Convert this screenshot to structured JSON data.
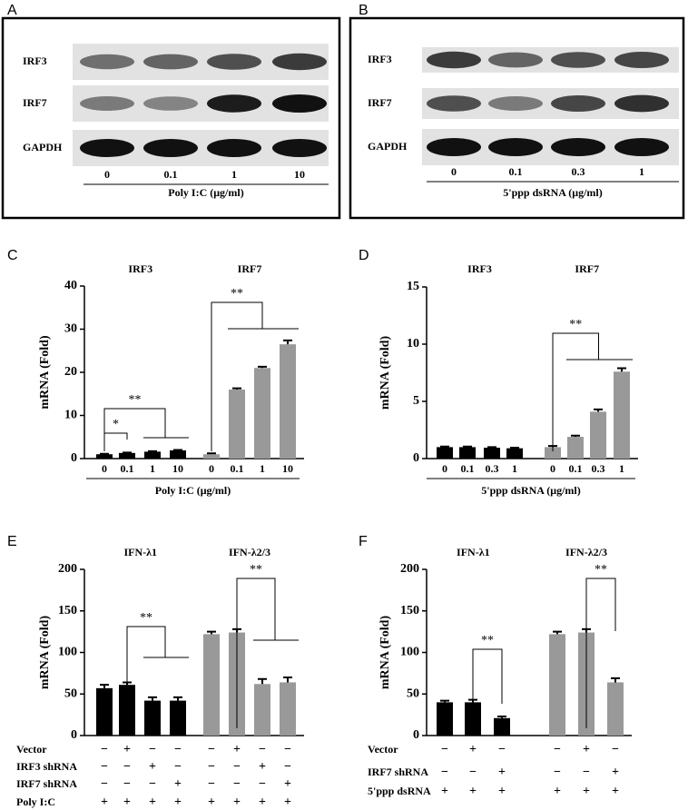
{
  "blots": [
    {
      "panel": "A",
      "rows": [
        "IRF3",
        "IRF7",
        "GAPDH"
      ],
      "lanes": [
        "0",
        "0.1",
        "1",
        "10"
      ],
      "xlabel": "Poly I:C (μg/ml)"
    },
    {
      "panel": "B",
      "rows": [
        "IRF3",
        "IRF7",
        "GAPDH"
      ],
      "lanes": [
        "0",
        "0.1",
        "0.3",
        "1"
      ],
      "xlabel": "5'ppp dsRNA (μg/ml)"
    }
  ],
  "chart_data": [
    {
      "type": "bar",
      "panel": "C",
      "ylabel": "mRNA (Fold)",
      "xlabel": "Poly I:C (μg/ml)",
      "categories": [
        "0",
        "0.1",
        "1",
        "10",
        "0",
        "0.1",
        "1",
        "10"
      ],
      "series": [
        {
          "name": "IRF3",
          "color": "#000000",
          "values": [
            1,
            1.3,
            1.6,
            1.9,
            null,
            null,
            null,
            null
          ],
          "errors": [
            0.1,
            0.1,
            0.1,
            0.1,
            null,
            null,
            null,
            null
          ]
        },
        {
          "name": "IRF7",
          "color": "#999999",
          "values": [
            null,
            null,
            null,
            null,
            1,
            16,
            21,
            26.5
          ],
          "errors": [
            null,
            null,
            null,
            null,
            0.2,
            0.3,
            0.3,
            0.9
          ]
        }
      ],
      "ylim": [
        0,
        40
      ],
      "yticks": [
        0,
        10,
        20,
        30,
        40
      ],
      "annotations": [
        "*",
        "**",
        "**"
      ]
    },
    {
      "type": "bar",
      "panel": "D",
      "ylabel": "mRNA (Fold)",
      "xlabel": "5'ppp dsRNA (μg/ml)",
      "categories": [
        "0",
        "0.1",
        "0.3",
        "1",
        "0",
        "0.1",
        "0.3",
        "1"
      ],
      "series": [
        {
          "name": "IRF3",
          "color": "#000000",
          "values": [
            1,
            1,
            0.95,
            0.9,
            null,
            null,
            null,
            null
          ],
          "errors": [
            0.05,
            0.05,
            0.05,
            0.05,
            null,
            null,
            null,
            null
          ]
        },
        {
          "name": "IRF7",
          "color": "#999999",
          "values": [
            null,
            null,
            null,
            null,
            1,
            1.9,
            4.1,
            7.6
          ],
          "errors": [
            null,
            null,
            null,
            null,
            0.1,
            0.1,
            0.2,
            0.3
          ]
        }
      ],
      "ylim": [
        0,
        15
      ],
      "yticks": [
        0,
        5,
        10,
        15
      ],
      "annotations": [
        "**"
      ]
    },
    {
      "type": "bar",
      "panel": "E",
      "ylabel": "mRNA (Fold)",
      "categories": [
        null,
        null,
        null,
        null,
        null,
        null,
        null,
        null
      ],
      "series": [
        {
          "name": "IFN-λ1",
          "color": "#000000",
          "values": [
            57,
            61,
            42,
            42,
            null,
            null,
            null,
            null
          ],
          "errors": [
            4,
            3,
            4,
            4,
            null,
            null,
            null,
            null
          ]
        },
        {
          "name": "IFN-λ2/3",
          "color": "#999999",
          "values": [
            null,
            null,
            null,
            null,
            122,
            124,
            62,
            64
          ],
          "errors": [
            null,
            null,
            null,
            null,
            3,
            4,
            6,
            6
          ]
        }
      ],
      "ylim": [
        0,
        200
      ],
      "yticks": [
        0,
        50,
        100,
        150,
        200
      ],
      "annotations": [
        "**",
        "**"
      ],
      "conditions": [
        {
          "label": "Vector",
          "signs": [
            "−",
            "+",
            "−",
            "−",
            "−",
            "+",
            "−",
            "−"
          ]
        },
        {
          "label": "IRF3 shRNA",
          "signs": [
            "−",
            "−",
            "+",
            "−",
            "−",
            "−",
            "+",
            "−"
          ]
        },
        {
          "label": "IRF7 shRNA",
          "signs": [
            "−",
            "−",
            "−",
            "+",
            "−",
            "−",
            "−",
            "+"
          ]
        },
        {
          "label": "Poly I:C",
          "signs": [
            "+",
            "+",
            "+",
            "+",
            "+",
            "+",
            "+",
            "+"
          ]
        }
      ]
    },
    {
      "type": "bar",
      "panel": "F",
      "ylabel": "mRNA (Fold)",
      "categories": [
        null,
        null,
        null,
        null,
        null,
        null
      ],
      "series": [
        {
          "name": "IFN-λ1",
          "color": "#000000",
          "values": [
            40,
            40,
            21,
            null,
            null,
            null
          ],
          "errors": [
            2,
            3,
            2,
            null,
            null,
            null
          ]
        },
        {
          "name": "IFN-λ2/3",
          "color": "#999999",
          "values": [
            null,
            null,
            null,
            122,
            124,
            64
          ],
          "errors": [
            null,
            null,
            null,
            3,
            4,
            5
          ]
        }
      ],
      "ylim": [
        0,
        200
      ],
      "yticks": [
        0,
        50,
        100,
        150,
        200
      ],
      "annotations": [
        "**",
        "**"
      ],
      "conditions": [
        {
          "label": "Vector",
          "signs": [
            "−",
            "+",
            "−",
            "−",
            "+",
            "−"
          ]
        },
        {
          "label": "IRF7 shRNA",
          "signs": [
            "−",
            "−",
            "+",
            "−",
            "−",
            "+"
          ]
        },
        {
          "label": "5'ppp dsRNA",
          "signs": [
            "+",
            "+",
            "+",
            "+",
            "+",
            "+"
          ]
        }
      ]
    }
  ]
}
